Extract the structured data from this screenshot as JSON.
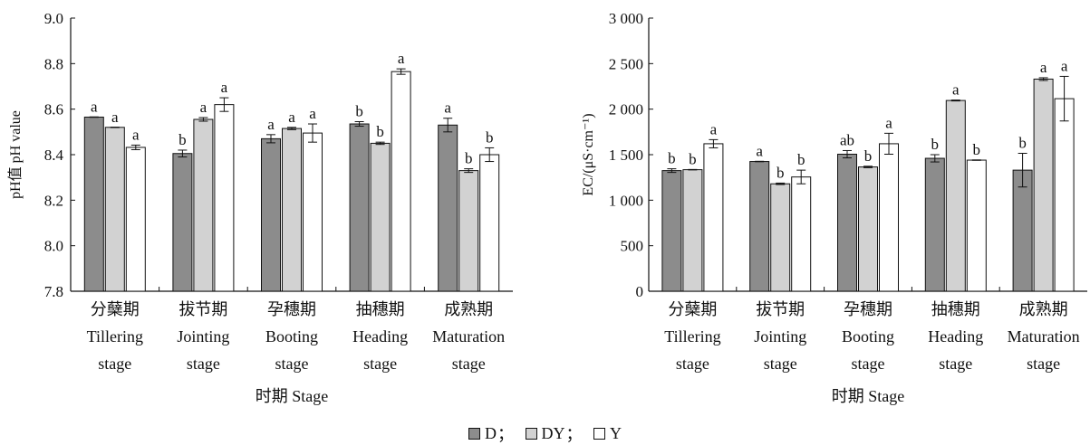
{
  "legend": {
    "items": [
      {
        "name": "D",
        "color": "#8c8c8c",
        "sep": "；"
      },
      {
        "name": "DY",
        "color": "#d2d2d2",
        "sep": "；"
      },
      {
        "name": "Y",
        "color": "#ffffff",
        "sep": ""
      }
    ]
  },
  "chart_data": [
    {
      "type": "bar",
      "categories": [
        {
          "cn": "分蘖期",
          "en1": "Tillering",
          "en2": "stage"
        },
        {
          "cn": "拔节期",
          "en1": "Jointing",
          "en2": "stage"
        },
        {
          "cn": "孕穗期",
          "en1": "Booting",
          "en2": "stage"
        },
        {
          "cn": "抽穗期",
          "en1": "Heading",
          "en2": "stage"
        },
        {
          "cn": "成熟期",
          "en1": "Maturation",
          "en2": "stage"
        }
      ],
      "series": [
        {
          "name": "D",
          "color": "#8c8c8c",
          "values": [
            8.565,
            8.405,
            8.47,
            8.535,
            8.53
          ],
          "errors": [
            0,
            0.015,
            0.018,
            0.01,
            0.03
          ],
          "labels": [
            "a",
            "b",
            "a",
            "b",
            "a"
          ]
        },
        {
          "name": "DY",
          "color": "#d2d2d2",
          "values": [
            8.52,
            8.555,
            8.515,
            8.45,
            8.33
          ],
          "errors": [
            0,
            0.008,
            0.005,
            0.005,
            0.008
          ],
          "labels": [
            "a",
            "a",
            "a",
            "b",
            "b"
          ]
        },
        {
          "name": "Y",
          "color": "#ffffff",
          "values": [
            8.432,
            8.62,
            8.495,
            8.765,
            8.4
          ],
          "errors": [
            0.01,
            0.03,
            0.04,
            0.012,
            0.03
          ],
          "labels": [
            "a",
            "a",
            "a",
            "a",
            "b"
          ]
        }
      ],
      "xlabel": "时期 Stage",
      "ylabel": "pH值 pH value",
      "ylim": [
        7.8,
        9.0
      ],
      "yticks": [
        {
          "value": 7.8,
          "label": "7.8"
        },
        {
          "value": 8.0,
          "label": "8.0"
        },
        {
          "value": 8.2,
          "label": "8.2"
        },
        {
          "value": 8.4,
          "label": "8.4"
        },
        {
          "value": 8.6,
          "label": "8.6"
        },
        {
          "value": 8.8,
          "label": "8.8"
        },
        {
          "value": 9.0,
          "label": "9.0"
        }
      ]
    },
    {
      "type": "bar",
      "categories": [
        {
          "cn": "分蘖期",
          "en1": "Tillering",
          "en2": "stage"
        },
        {
          "cn": "拔节期",
          "en1": "Jointing",
          "en2": "stage"
        },
        {
          "cn": "孕穗期",
          "en1": "Booting",
          "en2": "stage"
        },
        {
          "cn": "抽穗期",
          "en1": "Heading",
          "en2": "stage"
        },
        {
          "cn": "成熟期",
          "en1": "Maturation",
          "en2": "stage"
        }
      ],
      "series": [
        {
          "name": "D",
          "color": "#8c8c8c",
          "values": [
            1325,
            1425,
            1505,
            1460,
            1330
          ],
          "errors": [
            20,
            0,
            40,
            40,
            185
          ],
          "labels": [
            "b",
            "a",
            "ab",
            "b",
            "b"
          ]
        },
        {
          "name": "DY",
          "color": "#d2d2d2",
          "values": [
            1335,
            1180,
            1365,
            2095,
            2330
          ],
          "errors": [
            0,
            8,
            8,
            5,
            15
          ],
          "labels": [
            "b",
            "b",
            "b",
            "a",
            "a"
          ]
        },
        {
          "name": "Y",
          "color": "#ffffff",
          "values": [
            1620,
            1255,
            1620,
            1440,
            2115
          ],
          "errors": [
            45,
            75,
            115,
            0,
            245
          ],
          "labels": [
            "a",
            "b",
            "a",
            "b",
            "a"
          ]
        }
      ],
      "xlabel": "时期 Stage",
      "ylabel": "EC/(μS·cm⁻¹)",
      "ylim": [
        0,
        3000
      ],
      "yticks": [
        {
          "value": 0,
          "label": "0"
        },
        {
          "value": 500,
          "label": "500"
        },
        {
          "value": 1000,
          "label": "1 000"
        },
        {
          "value": 1500,
          "label": "1 500"
        },
        {
          "value": 2000,
          "label": "2 000"
        },
        {
          "value": 2500,
          "label": "2 500"
        },
        {
          "value": 3000,
          "label": "3 000"
        }
      ]
    }
  ]
}
